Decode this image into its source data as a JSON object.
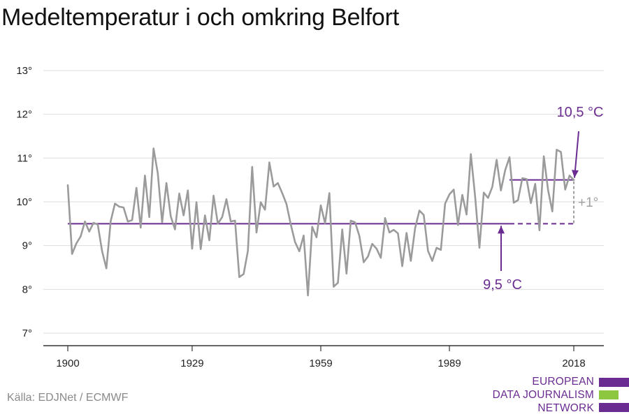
{
  "title": "Medeltemperatur i och omkring Belfort",
  "source": "Källa: EDJNet / ECMWF",
  "logo": {
    "lines": [
      "EUROPEAN",
      "DATA JOURNALISM",
      "NETWORK"
    ],
    "colors": {
      "purple": "#6a2c91",
      "green": "#8dc63f"
    }
  },
  "colors": {
    "series": "#9b9b9b",
    "accent": "#6a2c91",
    "grid": "#dddddd",
    "axis": "#333333",
    "delta": "#a0a0a0"
  },
  "chart_data": {
    "type": "line",
    "title": "Medeltemperatur i och omkring Belfort",
    "xlabel": "",
    "ylabel": "",
    "xlim": [
      1900,
      2018
    ],
    "ylim": [
      7,
      13
    ],
    "x_ticks": [
      1900,
      1929,
      1959,
      1989,
      2018
    ],
    "y_ticks": [
      7,
      8,
      9,
      10,
      11,
      12,
      13
    ],
    "y_tick_labels": [
      "7°",
      "8°",
      "9°",
      "10°",
      "11°",
      "12°",
      "13°"
    ],
    "grid": true,
    "series": [
      {
        "x": [
          1900,
          1901,
          1902,
          1903,
          1904,
          1905,
          1906,
          1907,
          1908,
          1909,
          1910,
          1911,
          1912,
          1913,
          1914,
          1915,
          1916,
          1917,
          1918,
          1919,
          1920,
          1921,
          1922,
          1923,
          1924,
          1925,
          1926,
          1927,
          1928,
          1929,
          1930,
          1931,
          1932,
          1933,
          1934,
          1935,
          1936,
          1937,
          1938,
          1939,
          1940,
          1941,
          1942,
          1943,
          1944,
          1945,
          1946,
          1947,
          1948,
          1949,
          1950,
          1951,
          1952,
          1953,
          1954,
          1955,
          1956,
          1957,
          1958,
          1959,
          1960,
          1961,
          1962,
          1963,
          1964,
          1965,
          1966,
          1967,
          1968,
          1969,
          1970,
          1971,
          1972,
          1973,
          1974,
          1975,
          1976,
          1977,
          1978,
          1979,
          1980,
          1981,
          1982,
          1983,
          1984,
          1985,
          1986,
          1987,
          1988,
          1989,
          1990,
          1991,
          1992,
          1993,
          1994,
          1995,
          1996,
          1997,
          1998,
          1999,
          2000,
          2001,
          2002,
          2003,
          2004,
          2005,
          2006,
          2007,
          2008,
          2009,
          2010,
          2011,
          2012,
          2013,
          2014,
          2015,
          2016,
          2017,
          2018
        ],
        "values": [
          10.38,
          8.81,
          9.05,
          9.21,
          9.55,
          9.32,
          9.52,
          9.48,
          8.87,
          8.48,
          9.56,
          9.96,
          9.89,
          9.87,
          9.55,
          9.58,
          10.32,
          9.41,
          10.6,
          9.65,
          11.22,
          10.65,
          9.53,
          10.43,
          9.67,
          9.37,
          10.19,
          9.69,
          10.26,
          8.93,
          9.99,
          8.92,
          9.69,
          9.12,
          10.14,
          9.5,
          9.65,
          10.06,
          9.55,
          9.57,
          8.28,
          8.35,
          8.88,
          10.8,
          9.3,
          9.99,
          9.82,
          10.9,
          10.35,
          10.43,
          10.2,
          9.95,
          9.48,
          9.08,
          8.87,
          9.23,
          7.86,
          9.43,
          9.19,
          9.92,
          9.51,
          10.2,
          8.06,
          8.15,
          9.37,
          8.36,
          9.57,
          9.53,
          9.22,
          8.62,
          8.75,
          9.04,
          8.93,
          8.72,
          9.63,
          9.3,
          9.36,
          9.28,
          8.53,
          9.29,
          8.65,
          9.4,
          9.8,
          9.7,
          8.88,
          8.65,
          8.95,
          8.9,
          9.96,
          10.17,
          10.28,
          9.47,
          10.16,
          9.71,
          11.09,
          10.11,
          8.95,
          10.21,
          10.09,
          10.34,
          10.96,
          10.26,
          10.72,
          11.02,
          9.98,
          10.04,
          10.54,
          10.52,
          9.97,
          10.41,
          9.35,
          11.04,
          10.27,
          9.78,
          11.19,
          11.14,
          10.28,
          10.6,
          10.5
        ]
      }
    ],
    "annotations": [
      {
        "label": "9,5 °C",
        "value": 9.5,
        "x_start": 1900,
        "x_end": 2018,
        "dashed_from": 2003
      },
      {
        "label": "10,5 °C",
        "value": 10.5,
        "x_start": 2003,
        "x_end": 2018
      },
      {
        "label": "+1°",
        "from": 9.5,
        "to": 10.5,
        "x": 2018
      }
    ]
  }
}
